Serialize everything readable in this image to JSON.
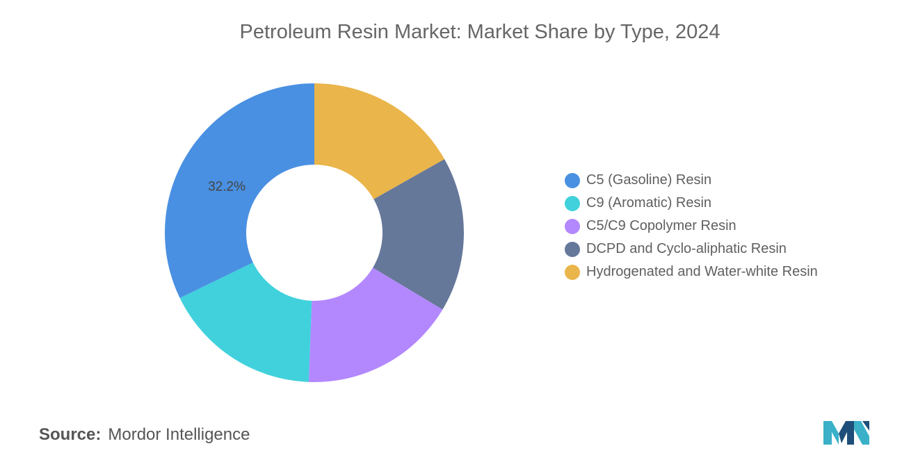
{
  "chart_data": {
    "type": "pie",
    "style": "donut",
    "title": "Petroleum Resin Market: Market Share by Type, 2024",
    "categories": [
      "C5 (Gasoline) Resin",
      "C9 (Aromatic) Resin",
      "C5/C9 Copolymer Resin",
      "DCPD and Cyclo-aliphatic Resin",
      "Hydrogenated and Water-white Resin"
    ],
    "values": [
      32.2,
      17.2,
      17.0,
      16.8,
      16.8
    ],
    "colors": [
      "#4a90e2",
      "#40d1dc",
      "#b388ff",
      "#66789a",
      "#eab54a"
    ],
    "labels": [
      {
        "category": "C5 (Gasoline) Resin",
        "text": "32.2%"
      }
    ],
    "legend_position": "right"
  },
  "source": {
    "label": "Source:",
    "text": "Mordor Intelligence"
  },
  "logo": {
    "icon": "mordor-intelligence-logo",
    "colors": [
      "#3ab1c8",
      "#1e4f7a"
    ]
  }
}
